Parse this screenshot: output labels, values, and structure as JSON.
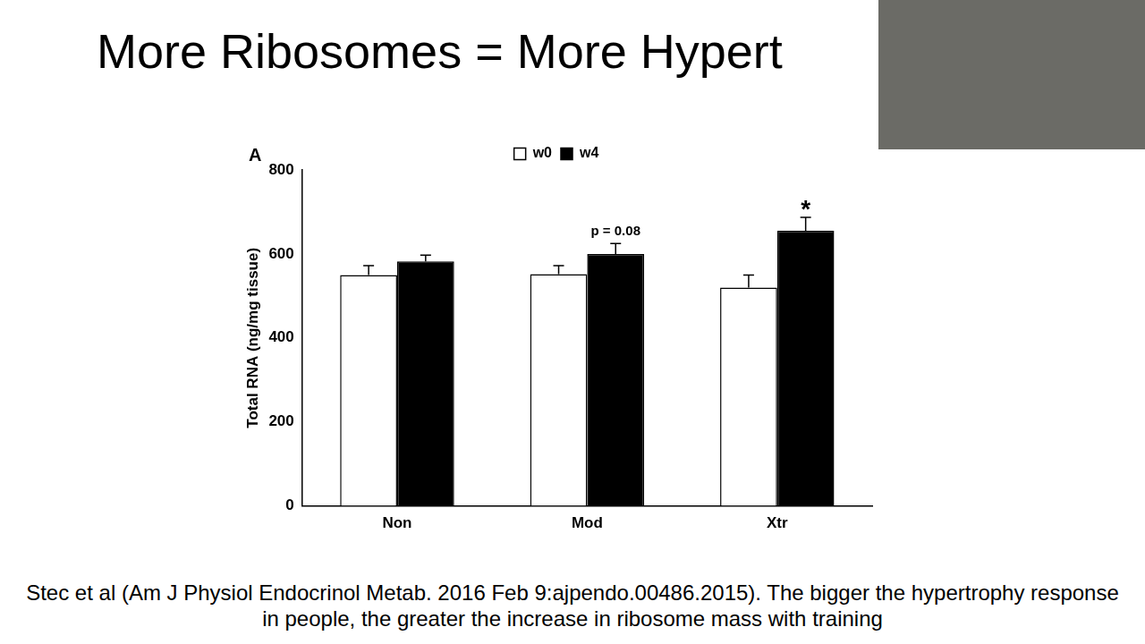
{
  "title": "More Ribosomes = More Hypert",
  "caption": "Stec et al (Am J Physiol Endocrinol Metab. 2016 Feb 9:ajpendo.00486.2015). The bigger the hypertrophy response in people, the greater the increase in ribosome mass with training",
  "chart_data": {
    "type": "bar",
    "panel_label": "A",
    "y_label": "Total RNA (ng/mg tissue)",
    "categories": [
      "Non",
      "Mod",
      "Xtr"
    ],
    "series": [
      {
        "name": "w0",
        "color": "#ffffff",
        "values": [
          550,
          552,
          520
        ],
        "errors": [
          22,
          20,
          30
        ]
      },
      {
        "name": "w4",
        "color": "#000000",
        "values": [
          582,
          600,
          655
        ],
        "errors": [
          15,
          25,
          32
        ]
      }
    ],
    "ylim": [
      0,
      800
    ],
    "yticks": [
      0,
      200,
      400,
      600,
      800
    ],
    "grid": false,
    "legend": "top",
    "annotations": [
      {
        "text": "p = 0.08",
        "category": "Mod",
        "series": "w4"
      },
      {
        "text": "*",
        "category": "Xtr",
        "series": "w4"
      }
    ]
  }
}
